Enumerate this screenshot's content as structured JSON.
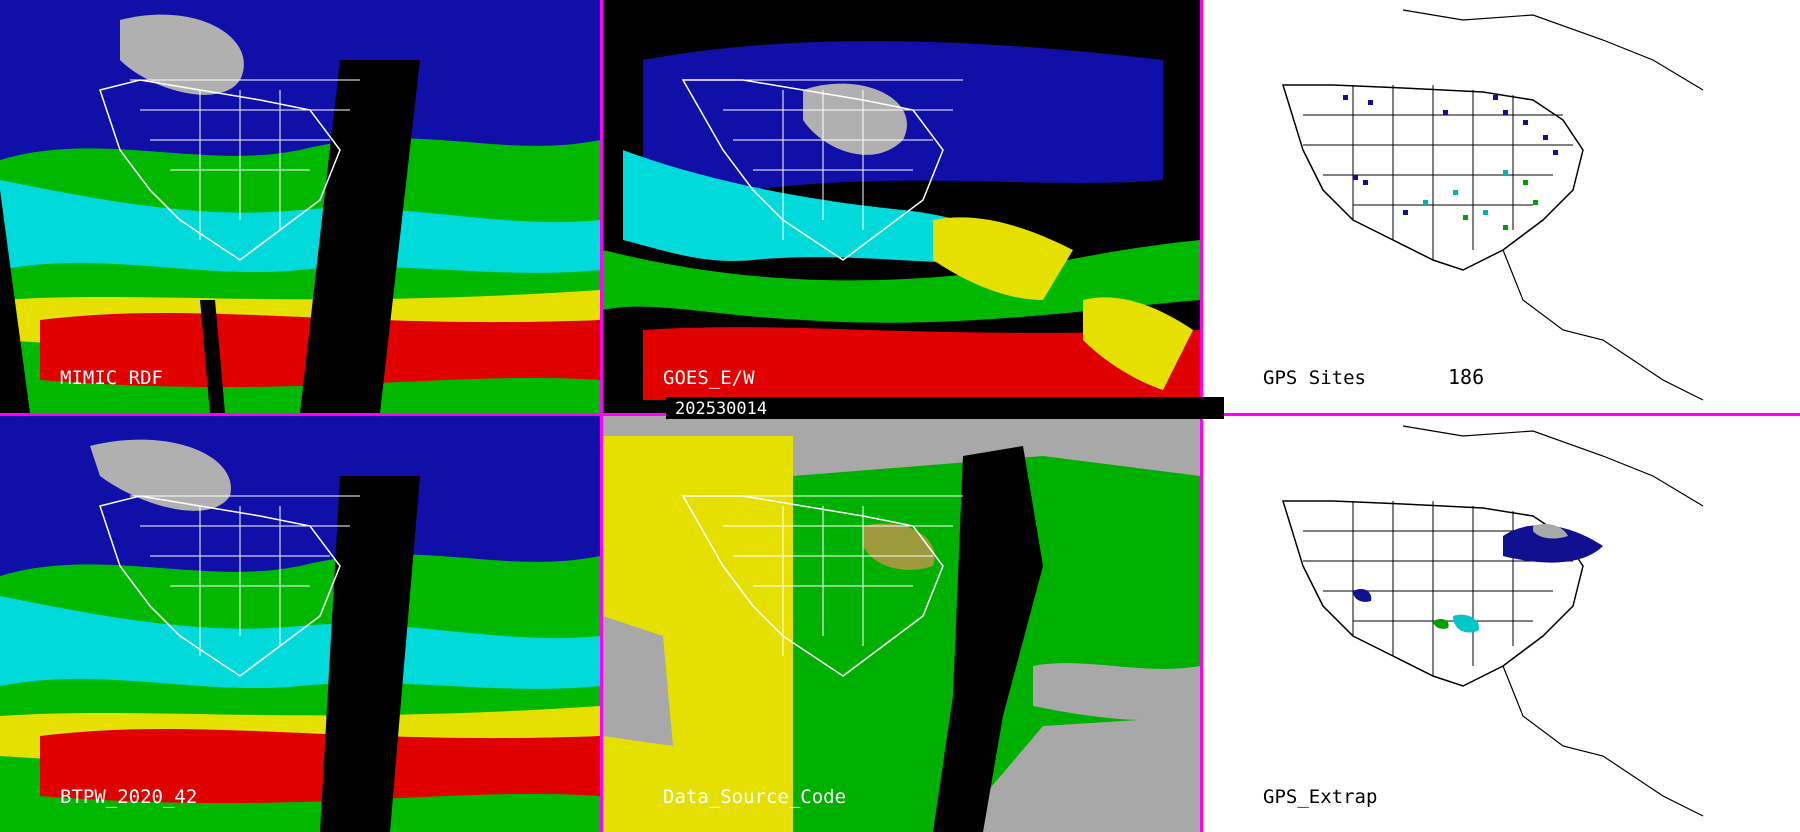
{
  "panels": [
    {
      "id": "mimic",
      "label": "MIMIC RDF"
    },
    {
      "id": "goes",
      "label": "GOES_E/W"
    },
    {
      "id": "gps",
      "label": "GPS Sites",
      "count": "186"
    },
    {
      "id": "blended",
      "label": "BTPW_2020_42"
    },
    {
      "id": "source",
      "label": "Data_Source_Code"
    },
    {
      "id": "extrap",
      "label": "GPS_Extrap"
    }
  ],
  "timestamp": "202530014",
  "colors": {
    "divider": "#ff00ff",
    "dry": "#0a0a9a",
    "moist": "#00e6e6",
    "wet": "#00b400",
    "very_wet": "#f0e000",
    "extreme": "#e00000",
    "background": "#000000"
  }
}
